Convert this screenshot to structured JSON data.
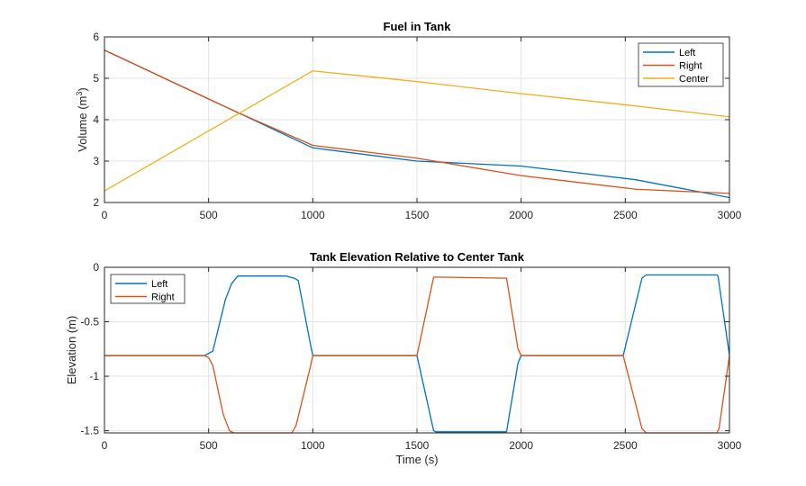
{
  "chart_data": [
    {
      "type": "line",
      "title": "Fuel in Tank",
      "xlabel": "",
      "ylabel": "Volume  (m",
      "ylabel_superscript": "3",
      "ylabel_suffix": ")",
      "xlim": [
        0,
        3000
      ],
      "ylim": [
        2,
        6
      ],
      "xticks": [
        0,
        500,
        1000,
        1500,
        2000,
        2500,
        3000
      ],
      "yticks": [
        2,
        3,
        4,
        5,
        6
      ],
      "grid": true,
      "legend_position": "top-right",
      "series": [
        {
          "name": "Left",
          "color": "#0072BD",
          "x": [
            0,
            500,
            650,
            1000,
            1500,
            2000,
            2550,
            3000
          ],
          "y": [
            5.68,
            4.5,
            4.15,
            3.32,
            3.0,
            2.88,
            2.55,
            2.12
          ]
        },
        {
          "name": "Right",
          "color": "#D95319",
          "x": [
            0,
            500,
            650,
            1000,
            1500,
            2000,
            2550,
            3000
          ],
          "y": [
            5.68,
            4.5,
            4.15,
            3.38,
            3.07,
            2.65,
            2.32,
            2.22
          ]
        },
        {
          "name": "Center",
          "color": "#EDB120",
          "x": [
            0,
            1000,
            1500,
            2000,
            2500,
            3000
          ],
          "y": [
            2.28,
            5.18,
            4.92,
            4.63,
            4.36,
            4.07
          ]
        }
      ]
    },
    {
      "type": "line",
      "title": "Tank Elevation Relative to Center Tank",
      "xlabel": "Time (s)",
      "ylabel": "Elevation (m)",
      "xlim": [
        0,
        3000
      ],
      "ylim": [
        -1.52,
        0
      ],
      "xticks": [
        0,
        500,
        1000,
        1500,
        2000,
        2500,
        3000
      ],
      "yticks": [
        -1.5,
        -1,
        -0.5,
        0
      ],
      "ytick_labels": [
        "-1.5",
        "-1",
        "-0.5",
        "0"
      ],
      "grid": true,
      "legend_position": "top-left",
      "series": [
        {
          "name": "Left",
          "color": "#0072BD",
          "x": [
            0,
            480,
            500,
            520,
            580,
            610,
            640,
            870,
            910,
            930,
            990,
            1000,
            1500,
            1580,
            1590,
            1930,
            1985,
            2000,
            2490,
            2580,
            2600,
            2940,
            2945,
            3000
          ],
          "y": [
            -0.81,
            -0.81,
            -0.79,
            -0.77,
            -0.3,
            -0.15,
            -0.08,
            -0.08,
            -0.1,
            -0.12,
            -0.72,
            -0.81,
            -0.81,
            -1.5,
            -1.51,
            -1.51,
            -0.88,
            -0.81,
            -0.81,
            -0.1,
            -0.07,
            -0.07,
            -0.08,
            -0.81
          ]
        },
        {
          "name": "Right",
          "color": "#D95319",
          "x": [
            0,
            480,
            500,
            520,
            570,
            600,
            620,
            900,
            920,
            990,
            1000,
            1500,
            1580,
            1590,
            1930,
            1985,
            2000,
            2490,
            2580,
            2600,
            2940,
            2950,
            3000
          ],
          "y": [
            -0.81,
            -0.81,
            -0.83,
            -0.9,
            -1.35,
            -1.5,
            -1.52,
            -1.52,
            -1.45,
            -0.9,
            -0.81,
            -0.81,
            -0.09,
            -0.09,
            -0.1,
            -0.75,
            -0.81,
            -0.81,
            -1.48,
            -1.52,
            -1.52,
            -1.48,
            -0.81
          ]
        }
      ]
    }
  ]
}
